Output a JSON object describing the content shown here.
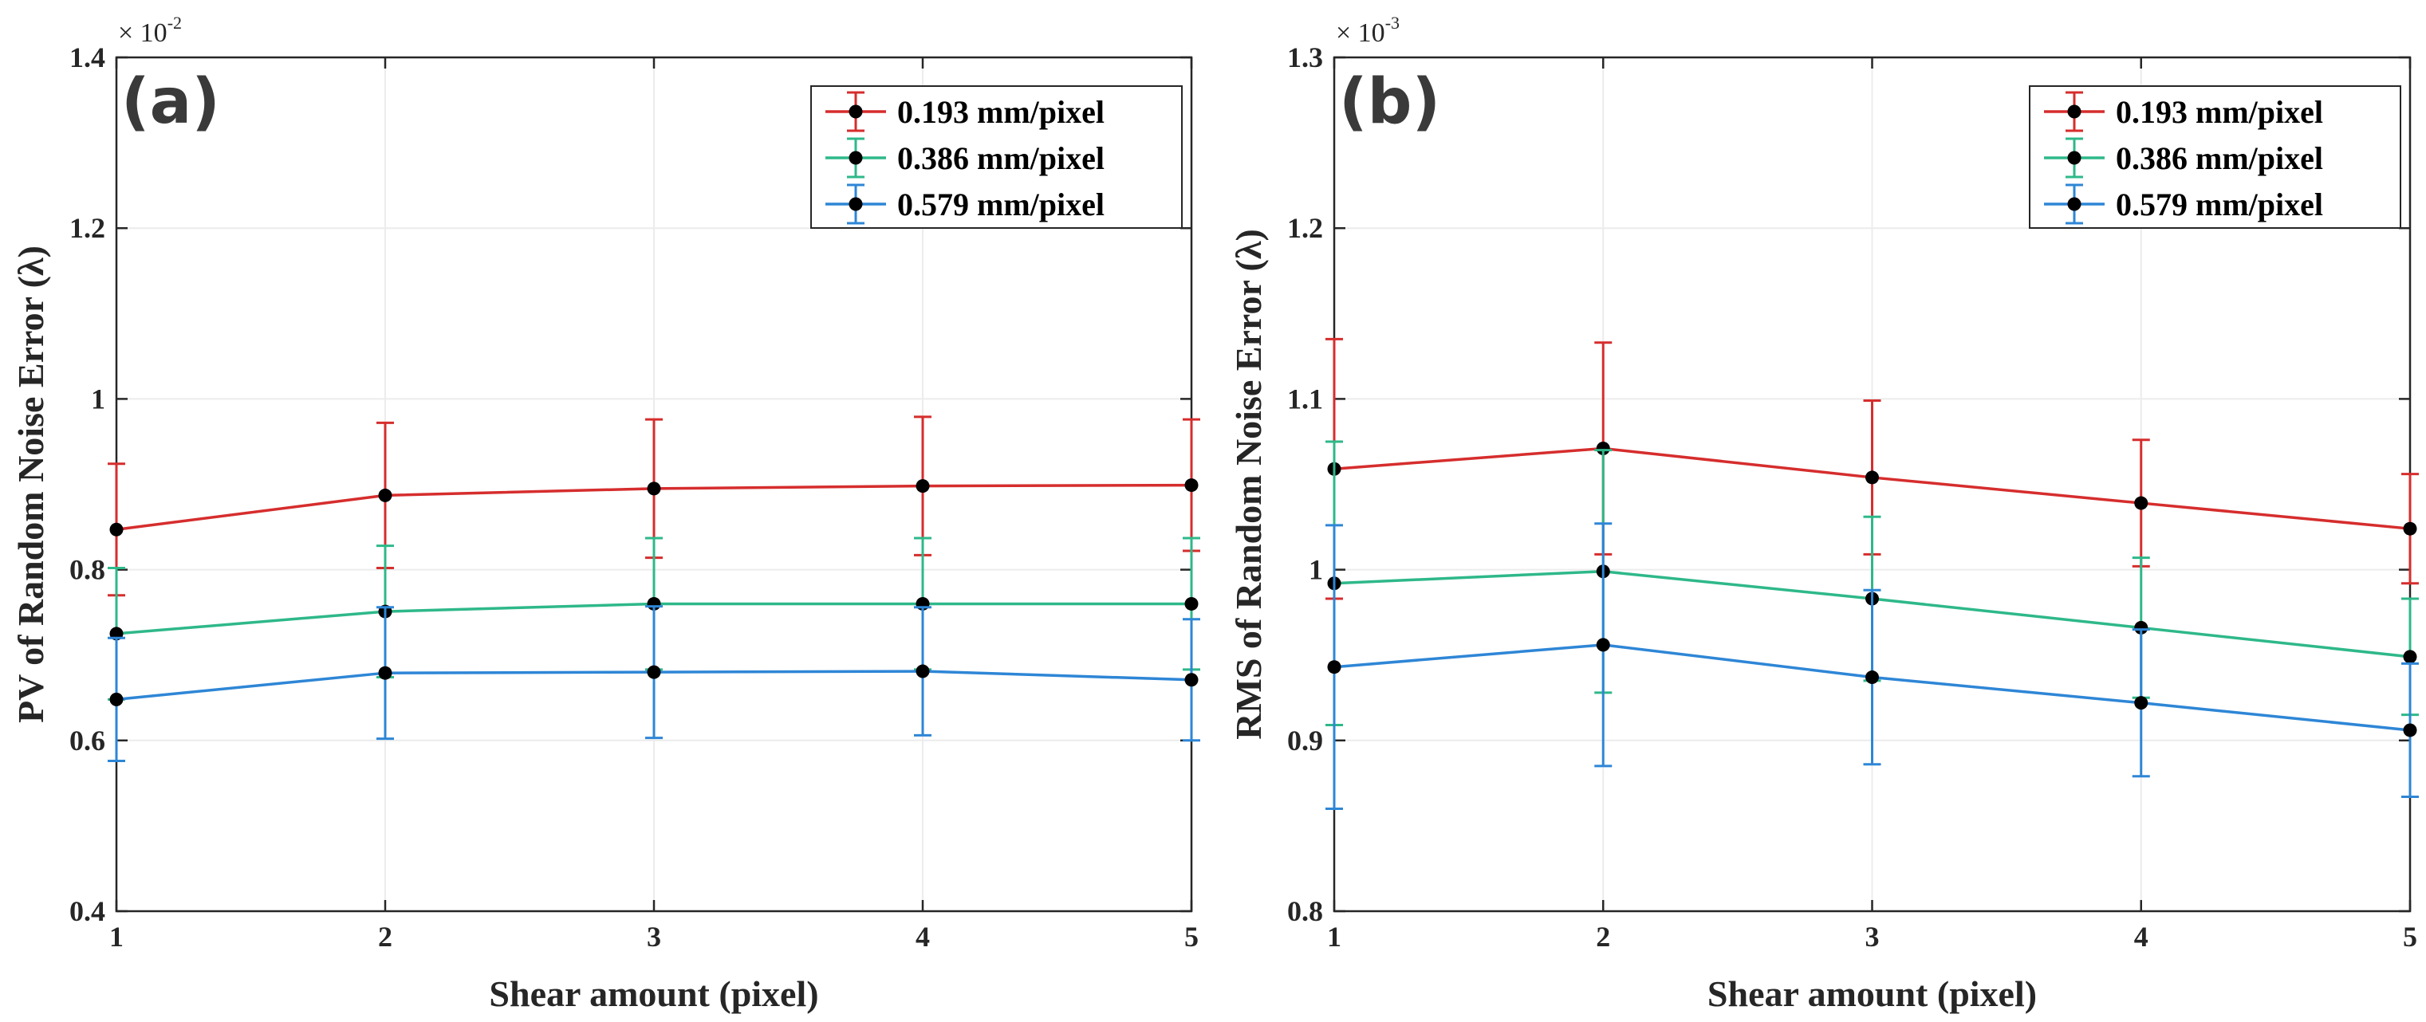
{
  "colors": {
    "red": "#d62d2d",
    "green": "#2eb88a",
    "blue": "#2e86d6",
    "marker": "#000000",
    "grid": "#ececec",
    "axis": "#262626"
  },
  "chart_data": [
    {
      "type": "line",
      "panel_label": "(a)",
      "title": "",
      "xlabel": "Shear amount (pixel)",
      "ylabel": "PV of Random Noise Error (λ)",
      "y_exponent_base": "× 10",
      "y_exponent_power": "-2",
      "x": [
        1,
        2,
        3,
        4,
        5
      ],
      "xlim": [
        1,
        5
      ],
      "ylim": [
        0.4,
        1.4
      ],
      "y_ticks": [
        0.4,
        0.6,
        0.8,
        1.0,
        1.2,
        1.4
      ],
      "y_tick_labels": [
        "0.4",
        "0.6",
        "0.8",
        "1",
        "1.2",
        "1.4"
      ],
      "x_tick_labels": [
        "1",
        "2",
        "3",
        "4",
        "5"
      ],
      "grid": true,
      "legend_position": "top-right",
      "series": [
        {
          "name": "0.193 mm/pixel",
          "color_key": "red",
          "values": [
            0.847,
            0.887,
            0.895,
            0.898,
            0.899
          ],
          "errors": [
            0.077,
            0.085,
            0.081,
            0.081,
            0.077
          ]
        },
        {
          "name": "0.386 mm/pixel",
          "color_key": "green",
          "values": [
            0.725,
            0.751,
            0.76,
            0.76,
            0.76
          ],
          "errors": [
            0.077,
            0.077,
            0.077,
            0.077,
            0.077
          ]
        },
        {
          "name": "0.579 mm/pixel",
          "color_key": "blue",
          "values": [
            0.648,
            0.679,
            0.68,
            0.681,
            0.671
          ],
          "errors": [
            0.072,
            0.077,
            0.077,
            0.075,
            0.071
          ]
        }
      ]
    },
    {
      "type": "line",
      "panel_label": "(b)",
      "title": "",
      "xlabel": "Shear amount (pixel)",
      "ylabel": "RMS of Random Noise Error (λ)",
      "y_exponent_base": "× 10",
      "y_exponent_power": "-3",
      "x": [
        1,
        2,
        3,
        4,
        5
      ],
      "xlim": [
        1,
        5
      ],
      "ylim": [
        0.8,
        1.3
      ],
      "y_ticks": [
        0.8,
        0.9,
        1.0,
        1.1,
        1.2,
        1.3
      ],
      "y_tick_labels": [
        "0.8",
        "0.9",
        "1",
        "1.1",
        "1.2",
        "1.3"
      ],
      "x_tick_labels": [
        "1",
        "2",
        "3",
        "4",
        "5"
      ],
      "grid": true,
      "legend_position": "top-right",
      "series": [
        {
          "name": "0.193 mm/pixel",
          "color_key": "red",
          "values": [
            1.059,
            1.071,
            1.054,
            1.039,
            1.024
          ],
          "errors": [
            0.076,
            0.062,
            0.045,
            0.037,
            0.032
          ]
        },
        {
          "name": "0.386 mm/pixel",
          "color_key": "green",
          "values": [
            0.992,
            0.999,
            0.983,
            0.966,
            0.949
          ],
          "errors": [
            0.083,
            0.071,
            0.048,
            0.041,
            0.034
          ]
        },
        {
          "name": "0.579 mm/pixel",
          "color_key": "blue",
          "values": [
            0.943,
            0.956,
            0.937,
            0.922,
            0.906
          ],
          "errors": [
            0.083,
            0.071,
            0.051,
            0.043,
            0.039
          ]
        }
      ]
    }
  ]
}
